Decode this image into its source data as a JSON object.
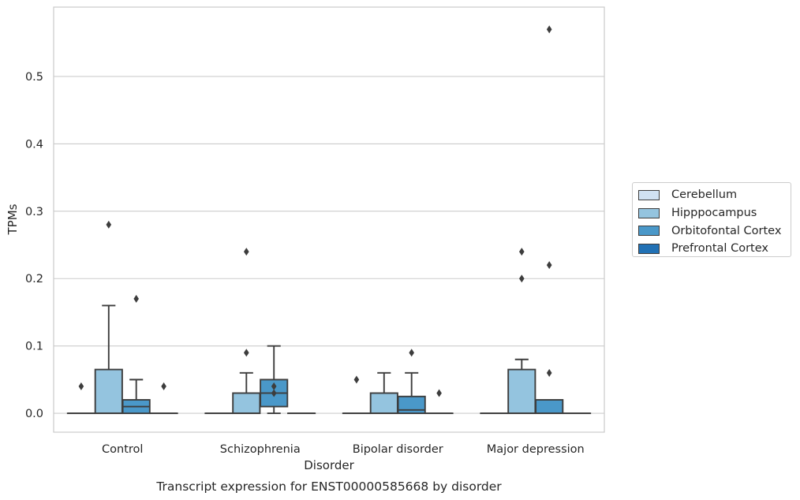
{
  "chart_data": {
    "type": "box",
    "title": "Transcript expression for ENST00000585668 by disorder",
    "xlabel": "Disorder",
    "ylabel": "TPMs",
    "ylim": [
      -0.028,
      0.603
    ],
    "yticks": [
      "0.0",
      "0.1",
      "0.2",
      "0.3",
      "0.4",
      "0.5"
    ],
    "grid": "horizontal",
    "legend_position": "right",
    "categories": [
      "Control",
      "Schizophrenia",
      "Bipolar disorder",
      "Major depression"
    ],
    "series": [
      {
        "name": "Cerebellum",
        "color": "#d0e1f2",
        "boxes": [
          {
            "q1": 0,
            "median": 0,
            "q3": 0,
            "whisker_low": 0,
            "whisker_high": 0,
            "outliers": [
              0.04
            ]
          },
          {
            "q1": 0,
            "median": 0,
            "q3": 0,
            "whisker_low": 0,
            "whisker_high": 0,
            "outliers": []
          },
          {
            "q1": 0,
            "median": 0,
            "q3": 0,
            "whisker_low": 0,
            "whisker_high": 0,
            "outliers": [
              0.05
            ]
          },
          {
            "q1": 0,
            "median": 0,
            "q3": 0,
            "whisker_low": 0,
            "whisker_high": 0,
            "outliers": []
          }
        ]
      },
      {
        "name": "Hipppocampus",
        "color": "#94c4df",
        "boxes": [
          {
            "q1": 0,
            "median": 0,
            "q3": 0.065,
            "whisker_low": 0,
            "whisker_high": 0.16,
            "outliers": [
              0.28
            ]
          },
          {
            "q1": 0,
            "median": 0,
            "q3": 0.03,
            "whisker_low": 0,
            "whisker_high": 0.06,
            "outliers": [
              0.09,
              0.24
            ]
          },
          {
            "q1": 0,
            "median": 0,
            "q3": 0.03,
            "whisker_low": 0,
            "whisker_high": 0.06,
            "outliers": []
          },
          {
            "q1": 0,
            "median": 0,
            "q3": 0.065,
            "whisker_low": 0,
            "whisker_high": 0.08,
            "outliers": [
              0.2,
              0.24
            ]
          }
        ]
      },
      {
        "name": "Orbitofontal Cortex",
        "color": "#4a98c9",
        "boxes": [
          {
            "q1": 0,
            "median": 0.01,
            "q3": 0.02,
            "whisker_low": 0,
            "whisker_high": 0.05,
            "outliers": [
              0.17
            ]
          },
          {
            "q1": 0.01,
            "median": 0.03,
            "q3": 0.05,
            "whisker_low": 0,
            "whisker_high": 0.1,
            "outliers": [
              0.03,
              0.04
            ]
          },
          {
            "q1": 0,
            "median": 0.005,
            "q3": 0.025,
            "whisker_low": 0,
            "whisker_high": 0.06,
            "outliers": [
              0.09
            ]
          },
          {
            "q1": 0,
            "median": 0,
            "q3": 0.02,
            "whisker_low": 0,
            "whisker_high": 0.02,
            "outliers": [
              0.06,
              0.22,
              0.57
            ]
          }
        ]
      },
      {
        "name": "Prefrontal Cortex",
        "color": "#2171b5",
        "boxes": [
          {
            "q1": 0,
            "median": 0,
            "q3": 0,
            "whisker_low": 0,
            "whisker_high": 0,
            "outliers": [
              0.04
            ]
          },
          {
            "q1": 0,
            "median": 0,
            "q3": 0,
            "whisker_low": 0,
            "whisker_high": 0,
            "outliers": []
          },
          {
            "q1": 0,
            "median": 0,
            "q3": 0,
            "whisker_low": 0,
            "whisker_high": 0,
            "outliers": [
              0.03
            ]
          },
          {
            "q1": 0,
            "median": 0,
            "q3": 0,
            "whisker_low": 0,
            "whisker_high": 0,
            "outliers": []
          }
        ]
      }
    ]
  }
}
